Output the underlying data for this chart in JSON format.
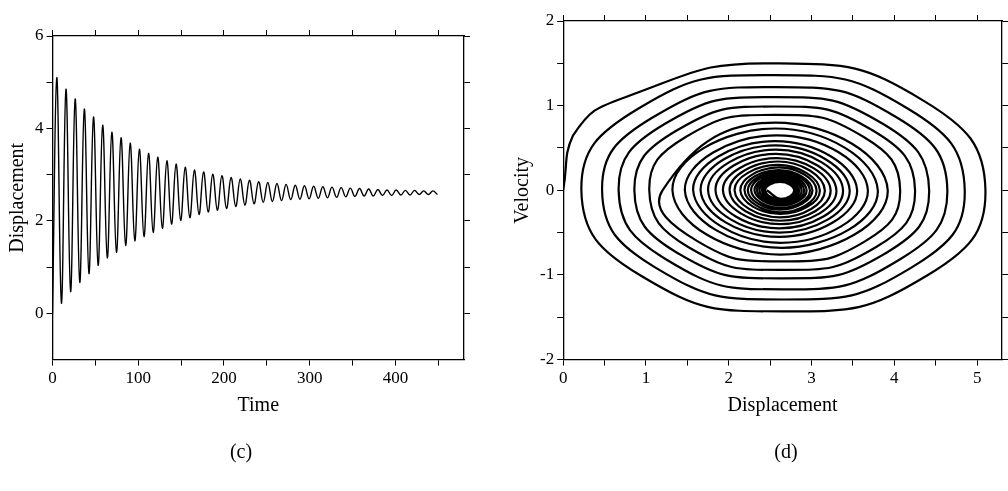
{
  "chart_data": [
    {
      "type": "line",
      "xlabel": "Time",
      "ylabel": "Displacement",
      "annotations": [
        "(c)"
      ],
      "grid": false,
      "legend": false,
      "marker": "none",
      "line_style": "solid",
      "xlim": [
        0,
        480
      ],
      "xticks": [
        0,
        {
          "value": 50,
          "label": null
        },
        100,
        {
          "value": 150,
          "label": null
        },
        200,
        {
          "value": 250,
          "label": null
        },
        300,
        {
          "value": 350,
          "label": null
        },
        400,
        {
          "value": 450,
          "label": null
        }
      ],
      "ylim": [
        -1,
        6
      ],
      "yticks": [
        0,
        {
          "value": 1,
          "label": null
        },
        2,
        {
          "value": 3,
          "label": null
        },
        4,
        {
          "value": 5,
          "label": null
        },
        6
      ],
      "series": [
        {
          "color": "#000000",
          "x": [
            0,
            5,
            10.4,
            15.7,
            21.1,
            26.4,
            31.8,
            37.1,
            42.5,
            47.8,
            53.2,
            58.5,
            63.9,
            69.2,
            74.6,
            79.9,
            85.3,
            90.6,
            96,
            101.3,
            106.7,
            112,
            117.4,
            122.7,
            128.1,
            133.4,
            138.8,
            144.1,
            149.5,
            154.8,
            160.2,
            165.5,
            170.9,
            176.2,
            181.6,
            186.9,
            192.3,
            197.6,
            203,
            208.3,
            213.7,
            219,
            224.4,
            229.7,
            235.1,
            240.4,
            245.8,
            251.1,
            256.5,
            261.8,
            267.2,
            272.5,
            277.9,
            283.2,
            288.6,
            293.9,
            299.3,
            304.6,
            310,
            315.3,
            320.7,
            326,
            331.4,
            336.7,
            342.1,
            347.4,
            352.8,
            358.1,
            363.5,
            368.8,
            374.2,
            379.5,
            384.9,
            390.2,
            395.6,
            400.9,
            406.3,
            411.6,
            417,
            422.3,
            427.7,
            433,
            438.4,
            443.7,
            449.1
          ],
          "values": [
            0,
            5.1,
            0.22,
            4.85,
            0.47,
            4.64,
            0.67,
            4.42,
            0.86,
            4.25,
            1.04,
            4.07,
            1.2,
            3.92,
            1.32,
            3.8,
            1.47,
            3.68,
            1.57,
            3.55,
            1.66,
            3.46,
            1.75,
            3.38,
            1.84,
            3.3,
            1.93,
            3.23,
            2.01,
            3.16,
            2.07,
            3.1,
            2.14,
            3.06,
            2.19,
            3.01,
            2.23,
            2.98,
            2.27,
            2.94,
            2.31,
            2.91,
            2.34,
            2.88,
            2.37,
            2.85,
            2.4,
            2.83,
            2.42,
            2.81,
            2.44,
            2.79,
            2.46,
            2.77,
            2.47,
            2.76,
            2.48,
            2.75,
            2.49,
            2.74,
            2.5,
            2.73,
            2.51,
            2.72,
            2.52,
            2.71,
            2.53,
            2.7,
            2.54,
            2.69,
            2.54,
            2.68,
            2.55,
            2.67,
            2.55,
            2.67,
            2.56,
            2.66,
            2.56,
            2.66,
            2.57,
            2.65,
            2.57,
            2.65,
            2.57
          ]
        }
      ]
    },
    {
      "type": "line",
      "xlabel": "Displacement",
      "ylabel": "Velocity",
      "annotations": [
        "(d)"
      ],
      "grid": false,
      "legend": false,
      "marker": "none",
      "line_style": "solid",
      "xlim": [
        0,
        5.3
      ],
      "xticks": [
        0,
        {
          "value": 0.5,
          "label": null
        },
        1,
        {
          "value": 1.5,
          "label": null
        },
        2,
        {
          "value": 2.5,
          "label": null
        },
        3,
        {
          "value": 3.5,
          "label": null
        },
        4,
        {
          "value": 4.5,
          "label": null
        },
        5
      ],
      "ylim": [
        -2,
        2
      ],
      "yticks": [
        -2,
        {
          "value": -1.5,
          "label": null
        },
        -1,
        {
          "value": -0.5,
          "label": null
        },
        0,
        {
          "value": 0.5,
          "label": null
        },
        1,
        {
          "value": 1.5,
          "label": null
        },
        2
      ],
      "series": [
        {
          "color": "#000000",
          "x": [
            0,
            0.12,
            0.75,
            2.55,
            4.35,
            5.1,
            4.39,
            2.66,
            0.94,
            0.22,
            0.9,
            2.54,
            4.17,
            4.85,
            4.21,
            2.66,
            1.11,
            0.47,
            1.08,
            2.56,
            4.03,
            4.64,
            4.06,
            2.66,
            1.25,
            0.67,
            1.22,
            2.55,
            3.87,
            4.42,
            3.9,
            2.64,
            1.38,
            0.86,
            1.36,
            2.56,
            3.75,
            4.25,
            3.78,
            2.65,
            1.51,
            1.04,
            1.48,
            2.56,
            3.63,
            4.07,
            3.65,
            2.64,
            1.62,
            1.2,
            2.56,
            3.92,
            2.62,
            1.32,
            2.56,
            3.8,
            2.64,
            1.47,
            2.58,
            3.68,
            2.63,
            1.57,
            2.56,
            3.55,
            2.61,
            1.66,
            2.56,
            3.46,
            2.61,
            1.75,
            2.57,
            3.38,
            2.61,
            1.84,
            2.57,
            3.3,
            2.62,
            1.93,
            2.58,
            3.23,
            2.62,
            2.01,
            2.59,
            3.16,
            2.62,
            2.07,
            2.59,
            3.1,
            2.62,
            2.14,
            2.6,
            3.06,
            2.63,
            2.19,
            2.6,
            3.01,
            2.62,
            2.23,
            2.61,
            2.98,
            2.63,
            2.27,
            2.61,
            2.94,
            2.63,
            2.31,
            2.61,
            2.91,
            2.63,
            2.34,
            2.61,
            2.88,
            2.63,
            2.37,
            2.61,
            2.85,
            2.63,
            2.4,
            2.62,
            2.83,
            2.63,
            2.42,
            2.62,
            2.81,
            2.63,
            2.44,
            2.62,
            2.79,
            2.63,
            2.46
          ],
          "values": [
            0,
            0.65,
            1.1,
            1.5,
            1.06,
            0,
            -1.01,
            -1.43,
            -1.01,
            0,
            0.96,
            1.36,
            0.96,
            0,
            -0.91,
            -1.29,
            -0.91,
            0,
            0.86,
            1.22,
            0.86,
            0,
            -0.82,
            -1.17,
            -0.82,
            0,
            0.78,
            1.1,
            0.78,
            0,
            -0.74,
            -1.04,
            -0.74,
            0,
            0.7,
            0.99,
            0.7,
            0,
            -0.67,
            -0.94,
            -0.67,
            0,
            0.63,
            0.89,
            0.63,
            0,
            -0.6,
            -0.84,
            -0.6,
            0,
            0.8,
            0,
            -0.76,
            0,
            0.73,
            0,
            -0.68,
            0,
            0.65,
            0,
            -0.62,
            0,
            0.58,
            0,
            -0.55,
            0,
            0.53,
            0,
            -0.5,
            0,
            0.48,
            0,
            -0.45,
            0,
            0.43,
            0,
            -0.4,
            0,
            0.38,
            0,
            -0.36,
            0,
            0.34,
            0,
            -0.32,
            0,
            0.3,
            0,
            -0.28,
            0,
            0.27,
            0,
            -0.26,
            0,
            0.24,
            0,
            -0.23,
            0,
            0.22,
            0,
            -0.21,
            0,
            0.2,
            0,
            -0.18,
            0,
            0.18,
            0,
            -0.17,
            0,
            0.16,
            0,
            -0.15,
            0,
            0.14,
            0,
            -0.13,
            0,
            0.13,
            0,
            -0.12,
            0,
            0.11,
            0,
            -0.11,
            0,
            0.1,
            0,
            -0.1,
            0
          ]
        }
      ]
    }
  ]
}
